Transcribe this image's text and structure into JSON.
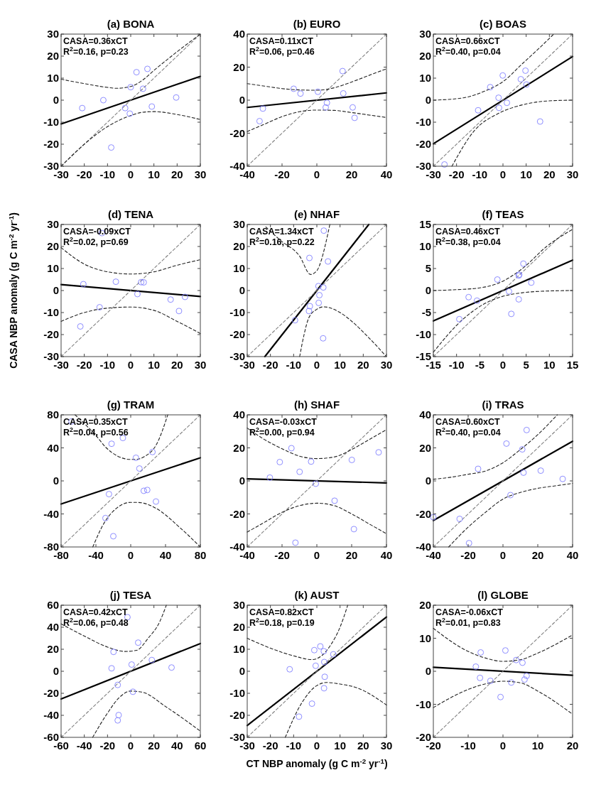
{
  "chart_data": [
    {
      "type": "scatter",
      "title": "(a) BONA",
      "xlim": [
        -30,
        30
      ],
      "ylim": [
        -30,
        30
      ],
      "xticks": [
        -30,
        -20,
        -10,
        0,
        10,
        20,
        30
      ],
      "yticks": [
        -30,
        -20,
        -10,
        0,
        10,
        20,
        30
      ],
      "annotations": [
        "CASA=0.36xCT",
        "R$^{2}$=0.16, p=0.23"
      ],
      "series": [
        {
          "type": "scatter",
          "color": "#8080ff",
          "marker": "circle",
          "x": [
            -20.9,
            -11.8,
            0,
            2.5,
            7.2,
            5.3,
            -2.4,
            -0.4,
            9.1,
            19.6,
            -8.4
          ],
          "values": [
            -3.6,
            0,
            5.9,
            12.7,
            14.2,
            5.2,
            -3.6,
            -6.1,
            -2.9,
            1.2,
            -21.5
          ]
        },
        {
          "type": "line",
          "color": "#000000",
          "line_style": "solid",
          "x": [
            -30,
            30
          ],
          "values": [
            -10.8,
            10.8
          ]
        },
        {
          "type": "line",
          "color": "#808080",
          "line_style": "dashed",
          "x": [
            -30,
            30
          ],
          "values": [
            -30,
            30
          ]
        },
        {
          "type": "line",
          "color": "#202020",
          "line_style": "dashed",
          "x": [
            -30,
            -20,
            -10,
            -6,
            0,
            5,
            10,
            20,
            30
          ],
          "values": [
            9.5,
            7.5,
            5.8,
            5.4,
            6.2,
            9,
            13.5,
            22,
            30
          ]
        },
        {
          "type": "line",
          "color": "#202020",
          "line_style": "dashed",
          "x": [
            -30,
            -20,
            -10,
            0,
            5,
            10,
            20,
            30
          ],
          "values": [
            -30,
            -20,
            -12,
            -7,
            -5.5,
            -5.2,
            -6.5,
            -8.8
          ]
        }
      ]
    },
    {
      "type": "scatter",
      "title": "(b) EURO",
      "xlim": [
        -40,
        40
      ],
      "ylim": [
        -40,
        40
      ],
      "xticks": [
        -40,
        -20,
        0,
        20,
        40
      ],
      "yticks": [
        -40,
        -20,
        0,
        20,
        40
      ],
      "annotations": [
        "CASA=0.11xCT",
        "R$^{2}$=0.06, p=0.46"
      ],
      "series": [
        {
          "type": "scatter",
          "color": "#8080ff",
          "marker": "circle",
          "x": [
            -32.9,
            -31,
            -13.3,
            -9.4,
            0.6,
            5.8,
            5.1,
            14.8,
            15.2,
            20.6,
            21.7
          ],
          "values": [
            -12.7,
            -5.1,
            6.9,
            4,
            5.1,
            -1.6,
            -4.4,
            17.6,
            4.1,
            -4.4,
            -10.7
          ]
        },
        {
          "type": "line",
          "color": "#000000",
          "line_style": "solid",
          "x": [
            -40,
            40
          ],
          "values": [
            -4.4,
            4.4
          ]
        },
        {
          "type": "line",
          "color": "#808080",
          "line_style": "dashed",
          "x": [
            -40,
            40
          ],
          "values": [
            -40,
            40
          ]
        },
        {
          "type": "line",
          "color": "#202020",
          "line_style": "dashed",
          "x": [
            -40,
            -30,
            -20,
            -10,
            0,
            10,
            20,
            30,
            40
          ],
          "values": [
            10,
            8.5,
            7,
            6.2,
            6,
            7.5,
            11,
            15,
            19
          ]
        },
        {
          "type": "line",
          "color": "#202020",
          "line_style": "dashed",
          "x": [
            -40,
            -30,
            -20,
            -10,
            0,
            10,
            20,
            30,
            40
          ],
          "values": [
            -19,
            -14.5,
            -10,
            -7,
            -6,
            -6.2,
            -7.5,
            -9,
            -10.5
          ]
        }
      ]
    },
    {
      "type": "scatter",
      "title": "(c) BOAS",
      "xlim": [
        -30,
        30
      ],
      "ylim": [
        -30,
        30
      ],
      "xticks": [
        -30,
        -20,
        -10,
        0,
        10,
        20,
        30
      ],
      "yticks": [
        -30,
        -20,
        -10,
        0,
        10,
        20,
        30
      ],
      "annotations": [
        "CASA=0.66xCT",
        "R$^{2}$=0.40, p=0.04"
      ],
      "series": [
        {
          "type": "scatter",
          "color": "#8080ff",
          "marker": "circle",
          "x": [
            -25.2,
            -10.7,
            -5.5,
            -1.9,
            -1.7,
            -0.1,
            1.7,
            7.7,
            9.7,
            10.1,
            16
          ],
          "values": [
            -29.2,
            -4.6,
            5.9,
            1.1,
            -3.5,
            11.2,
            -1.2,
            9.5,
            13.4,
            7.1,
            -9.7
          ]
        },
        {
          "type": "line",
          "color": "#000000",
          "line_style": "solid",
          "x": [
            -30,
            30
          ],
          "values": [
            -19.8,
            19.8
          ]
        },
        {
          "type": "line",
          "color": "#808080",
          "line_style": "dashed",
          "x": [
            -30,
            30
          ],
          "values": [
            -30,
            30
          ]
        },
        {
          "type": "line",
          "color": "#202020",
          "line_style": "dashed",
          "x": [
            -30,
            -17.4,
            -7,
            0,
            8.5,
            15,
            21.9
          ],
          "values": [
            0,
            1,
            4.5,
            8.4,
            16.7,
            23,
            30
          ]
        },
        {
          "type": "line",
          "color": "#202020",
          "line_style": "dashed",
          "x": [
            -22,
            -12.2,
            -1.9,
            8.5,
            18.8,
            30
          ],
          "values": [
            -30,
            -13.7,
            -6,
            -2.1,
            -0.4,
            0
          ]
        }
      ]
    },
    {
      "type": "scatter",
      "title": "(d) TENA",
      "ylabel": "CASA NBP anomaly (g C m$^{-2}$ yr$^{-1}$)",
      "xlim": [
        -30,
        30
      ],
      "ylim": [
        -30,
        30
      ],
      "xticks": [
        -30,
        -20,
        -10,
        0,
        10,
        20,
        30
      ],
      "yticks": [
        -30,
        -20,
        -10,
        0,
        10,
        20,
        30
      ],
      "annotations": [
        "CASA=-0.09xCT",
        "R$^{2}$=0.02, p=0.69"
      ],
      "series": [
        {
          "type": "scatter",
          "color": "#8080ff",
          "marker": "circle",
          "x": [
            -12.4,
            -20.4,
            -6.4,
            -13.4,
            -21.7,
            2.9,
            4.5,
            5.6,
            17.2,
            20.8,
            23.4
          ],
          "values": [
            26.1,
            2.9,
            4,
            -7.6,
            -16.3,
            -1.6,
            3.8,
            3.7,
            -4.1,
            -9.3,
            -2.9
          ]
        },
        {
          "type": "line",
          "color": "#000000",
          "line_style": "solid",
          "x": [
            -30,
            30
          ],
          "values": [
            2.7,
            -2.7
          ]
        },
        {
          "type": "line",
          "color": "#808080",
          "line_style": "dashed",
          "x": [
            -30,
            30
          ],
          "values": [
            -30,
            30
          ]
        },
        {
          "type": "line",
          "color": "#202020",
          "line_style": "dashed",
          "x": [
            -30,
            -20,
            -10,
            0,
            10,
            20,
            30
          ],
          "values": [
            19.5,
            12,
            8.5,
            7.5,
            8.5,
            11.5,
            14
          ]
        },
        {
          "type": "line",
          "color": "#202020",
          "line_style": "dashed",
          "x": [
            -30,
            -20,
            -10,
            0,
            10,
            20,
            30
          ],
          "values": [
            -14,
            -10,
            -8,
            -7.5,
            -9,
            -14,
            -19.5
          ]
        }
      ]
    },
    {
      "type": "scatter",
      "title": "(e) NHAF",
      "xlim": [
        -30,
        30
      ],
      "ylim": [
        -30,
        30
      ],
      "xticks": [
        -30,
        -20,
        -10,
        0,
        10,
        20,
        30
      ],
      "yticks": [
        -30,
        -20,
        -10,
        0,
        10,
        20,
        30
      ],
      "annotations": [
        "CASA=1.34xCT",
        "R$^{2}$=0.16, p=0.22"
      ],
      "series": [
        {
          "type": "scatter",
          "color": "#8080ff",
          "marker": "circle",
          "x": [
            3,
            -3.2,
            4.8,
            0.7,
            2.8,
            1.1,
            0.8,
            -3,
            -3.4,
            -9.4,
            2.7
          ],
          "values": [
            27.2,
            14.8,
            13.2,
            2,
            1.4,
            -2.1,
            -5.6,
            -7.1,
            -9.3,
            -13.5,
            -21.7
          ]
        },
        {
          "type": "line",
          "color": "#000000",
          "line_style": "solid",
          "x": [
            -22.39,
            22.39
          ],
          "values": [
            -30,
            30
          ]
        },
        {
          "type": "line",
          "color": "#808080",
          "line_style": "dashed",
          "x": [
            -30,
            30
          ],
          "values": [
            -30,
            30
          ]
        },
        {
          "type": "line",
          "color": "#202020",
          "line_style": "dashed",
          "x": [
            -22,
            -15.7,
            -7.4,
            -2.7,
            0,
            2,
            3.5,
            5.6
          ],
          "values": [
            28.9,
            22.8,
            15.6,
            7.3,
            9,
            14,
            20,
            30
          ]
        },
        {
          "type": "line",
          "color": "#202020",
          "line_style": "dashed",
          "x": [
            -7.4,
            -5.5,
            -3.5,
            0,
            3,
            10,
            15.4,
            22,
            30
          ],
          "values": [
            -30,
            -20,
            -12.5,
            -8.5,
            -7.4,
            -10,
            -14.3,
            -21,
            -30
          ]
        }
      ]
    },
    {
      "type": "scatter",
      "title": "(f) TEAS",
      "xlim": [
        -15,
        15
      ],
      "ylim": [
        -15,
        15
      ],
      "xticks": [
        -15,
        -10,
        -5,
        0,
        5,
        10,
        15
      ],
      "yticks": [
        -15,
        -10,
        -5,
        0,
        5,
        10,
        15
      ],
      "annotations": [
        "CASA=0.46xCT",
        "R$^{2}$=0.38, p=0.04"
      ],
      "series": [
        {
          "type": "scatter",
          "color": "#8080ff",
          "marker": "circle",
          "x": [
            -9.4,
            -7.4,
            -5.6,
            -1.2,
            1.3,
            3.4,
            3.5,
            4.4,
            6.1,
            3.4,
            1.8
          ],
          "values": [
            -6.5,
            -1.5,
            -2.3,
            2.5,
            -0.2,
            3.4,
            3.6,
            6.1,
            1.8,
            -2,
            -5.3
          ]
        },
        {
          "type": "line",
          "color": "#000000",
          "line_style": "solid",
          "x": [
            -15,
            15
          ],
          "values": [
            -6.9,
            6.9
          ]
        },
        {
          "type": "line",
          "color": "#808080",
          "line_style": "dashed",
          "x": [
            -15,
            15
          ],
          "values": [
            -15,
            15
          ]
        },
        {
          "type": "line",
          "color": "#202020",
          "line_style": "dashed",
          "x": [
            -15,
            -10,
            -5,
            -0.9,
            4.2,
            9.4,
            15
          ],
          "values": [
            0,
            0.2,
            0.6,
            1.7,
            5,
            10,
            13.9
          ]
        },
        {
          "type": "line",
          "color": "#202020",
          "line_style": "dashed",
          "x": [
            -15,
            -8.7,
            -4,
            -0.9,
            4.2,
            10,
            15
          ],
          "values": [
            -14,
            -6.6,
            -3,
            -1.6,
            -0.5,
            -0.1,
            0
          ]
        }
      ]
    },
    {
      "type": "scatter",
      "title": "(g) TRAM",
      "xlim": [
        -80,
        80
      ],
      "ylim": [
        -80,
        80
      ],
      "xticks": [
        -80,
        -40,
        0,
        40,
        80
      ],
      "yticks": [
        -80,
        -40,
        0,
        40,
        80
      ],
      "annotations": [
        "CASA=0.35xCT",
        "R$^{2}$=0.04, p=0.56"
      ],
      "series": [
        {
          "type": "scatter",
          "color": "#8080ff",
          "marker": "circle",
          "x": [
            -68,
            -22,
            -9,
            6,
            10,
            25,
            15,
            19,
            29,
            -25,
            -29,
            -20
          ],
          "values": [
            72,
            45,
            52,
            28,
            15,
            35,
            -12,
            -11,
            -25,
            -16,
            -45,
            -67
          ]
        },
        {
          "type": "line",
          "color": "#000000",
          "line_style": "solid",
          "x": [
            -80,
            80
          ],
          "values": [
            -28,
            28
          ]
        },
        {
          "type": "line",
          "color": "#808080",
          "line_style": "dashed",
          "x": [
            -80,
            80
          ],
          "values": [
            -80,
            80
          ]
        },
        {
          "type": "line",
          "color": "#202020",
          "line_style": "dashed",
          "x": [
            -64,
            -40,
            -28,
            -15,
            0,
            6,
            15,
            30,
            42.6
          ],
          "values": [
            80,
            55,
            40,
            30,
            26,
            26,
            29,
            45,
            80
          ]
        },
        {
          "type": "line",
          "color": "#202020",
          "line_style": "dashed",
          "x": [
            -43.6,
            -30,
            -15,
            0,
            6,
            15,
            28.8,
            57,
            80
          ],
          "values": [
            -80,
            -50,
            -32,
            -26,
            -26,
            -27,
            -33,
            -57,
            -80
          ]
        }
      ]
    },
    {
      "type": "scatter",
      "title": "(h) SHAF",
      "xlim": [
        -40,
        40
      ],
      "ylim": [
        -40,
        40
      ],
      "xticks": [
        -40,
        -20,
        0,
        20,
        40
      ],
      "yticks": [
        -40,
        -20,
        0,
        20,
        40
      ],
      "annotations": [
        "CASA=-0.03xCT",
        "R$^{2}$=0.00, p=0.94"
      ],
      "series": [
        {
          "type": "scatter",
          "color": "#8080ff",
          "marker": "circle",
          "x": [
            -27,
            -21.3,
            -14.6,
            -9.9,
            -3.3,
            -0.6,
            10.2,
            20.1,
            21.3,
            35.5,
            -12.3
          ],
          "values": [
            2,
            11.4,
            19.8,
            5.5,
            11.7,
            -1.7,
            -12,
            12.7,
            -29.2,
            17.3,
            -37.4
          ]
        },
        {
          "type": "line",
          "color": "#000000",
          "line_style": "solid",
          "x": [
            -40,
            40
          ],
          "values": [
            1.2,
            -1.2
          ]
        },
        {
          "type": "line",
          "color": "#808080",
          "line_style": "dashed",
          "x": [
            -40,
            40
          ],
          "values": [
            -40,
            40
          ]
        },
        {
          "type": "line",
          "color": "#202020",
          "line_style": "dashed",
          "x": [
            -40,
            -30,
            -20,
            -10,
            0,
            10,
            20,
            30,
            40
          ],
          "values": [
            32,
            25,
            19.5,
            15,
            13.5,
            14.5,
            19,
            25,
            31
          ]
        },
        {
          "type": "line",
          "color": "#202020",
          "line_style": "dashed",
          "x": [
            -40,
            -30,
            -20,
            -10,
            0,
            10,
            20,
            30,
            40
          ],
          "values": [
            -31,
            -25,
            -19,
            -15,
            -13.5,
            -15,
            -20,
            -26,
            -32
          ]
        }
      ]
    },
    {
      "type": "scatter",
      "title": "(i) TRAS",
      "xlim": [
        -40,
        40
      ],
      "ylim": [
        -40,
        40
      ],
      "xticks": [
        -40,
        -20,
        0,
        20,
        40
      ],
      "yticks": [
        -40,
        -20,
        0,
        20,
        40
      ],
      "annotations": [
        "CASA=0.60xCT",
        "R$^{2}$=0.40, p=0.04"
      ],
      "series": [
        {
          "type": "scatter",
          "color": "#8080ff",
          "marker": "circle",
          "x": [
            -40,
            -24.9,
            -19.5,
            -14.3,
            2,
            4.3,
            11.1,
            11.8,
            13.6,
            21.7,
            34.3
          ],
          "values": [
            -22,
            -23,
            -37.7,
            7.3,
            22.6,
            -8.6,
            19.1,
            5,
            30.8,
            6.2,
            1.2
          ]
        },
        {
          "type": "line",
          "color": "#000000",
          "line_style": "solid",
          "x": [
            -40,
            40
          ],
          "values": [
            -24,
            24
          ]
        },
        {
          "type": "line",
          "color": "#808080",
          "line_style": "dashed",
          "x": [
            -40,
            40
          ],
          "values": [
            -40,
            40
          ]
        },
        {
          "type": "line",
          "color": "#202020",
          "line_style": "dashed",
          "x": [
            -40,
            -30,
            -20,
            -10,
            0,
            10,
            20,
            31.2
          ],
          "values": [
            1,
            2.2,
            4,
            6,
            11,
            19,
            28,
            40
          ]
        },
        {
          "type": "line",
          "color": "#202020",
          "line_style": "dashed",
          "x": [
            -31.2,
            -20,
            -10,
            0,
            10,
            20,
            30,
            40
          ],
          "values": [
            -40,
            -28,
            -19,
            -11,
            -7,
            -4.5,
            -3,
            -1.5
          ]
        }
      ]
    },
    {
      "type": "scatter",
      "title": "(j) TESA",
      "xlim": [
        -60,
        60
      ],
      "ylim": [
        -60,
        60
      ],
      "xticks": [
        -60,
        -40,
        -20,
        0,
        20,
        40,
        60
      ],
      "yticks": [
        -60,
        -40,
        -20,
        0,
        20,
        40,
        60
      ],
      "annotations": [
        "CASA=0.42xCT",
        "R$^{2}$=0.06, p=0.48"
      ],
      "series": [
        {
          "type": "scatter",
          "color": "#8080ff",
          "marker": "circle",
          "x": [
            -2.8,
            6.4,
            -14.8,
            -16.5,
            0.8,
            18.2,
            35.2,
            -11.2,
            1.9,
            -10.4,
            -11.2
          ],
          "values": [
            49.1,
            26,
            17.6,
            2.7,
            6.1,
            10.2,
            3.4,
            -12.4,
            -18.6,
            -39.8,
            -44.6
          ]
        },
        {
          "type": "line",
          "color": "#000000",
          "line_style": "solid",
          "x": [
            -60,
            60
          ],
          "values": [
            -25.2,
            25.2
          ]
        },
        {
          "type": "line",
          "color": "#808080",
          "line_style": "dashed",
          "x": [
            -60,
            60
          ],
          "values": [
            -60,
            60
          ]
        },
        {
          "type": "line",
          "color": "#202020",
          "line_style": "dashed",
          "x": [
            -60,
            -40,
            -20,
            -5,
            5,
            15,
            25,
            30.7
          ],
          "values": [
            43,
            32,
            22,
            18,
            19,
            30,
            45,
            60
          ]
        },
        {
          "type": "line",
          "color": "#202020",
          "line_style": "dashed",
          "x": [
            -32.8,
            -20,
            -10,
            0,
            10,
            30,
            60
          ],
          "values": [
            -60,
            -38,
            -24,
            -18,
            -19,
            -32,
            -54.3
          ]
        }
      ]
    },
    {
      "type": "scatter",
      "title": "(k) AUST",
      "xlabel": "CT NBP anomaly (g C m$^{-2}$ yr$^{-1}$)",
      "xlim": [
        -30,
        30
      ],
      "ylim": [
        -30,
        30
      ],
      "xticks": [
        -30,
        -20,
        -10,
        0,
        10,
        20,
        30
      ],
      "yticks": [
        -30,
        -20,
        -10,
        0,
        10,
        20,
        30
      ],
      "annotations": [
        "CASA=0.82xCT",
        "R$^{2}$=0.18, p=0.19"
      ],
      "series": [
        {
          "type": "scatter",
          "color": "#8080ff",
          "marker": "circle",
          "x": [
            -11.7,
            -1.1,
            1.5,
            3,
            7.1,
            3.2,
            -0.5,
            3.4,
            3.1,
            -2.1,
            -7.7
          ],
          "values": [
            0.9,
            9.6,
            11.3,
            9.1,
            7.7,
            4.2,
            2.5,
            -2.5,
            -7.7,
            -14.7,
            -20.6
          ]
        },
        {
          "type": "line",
          "color": "#000000",
          "line_style": "solid",
          "x": [
            -30,
            30
          ],
          "values": [
            -24.6,
            24.6
          ]
        },
        {
          "type": "line",
          "color": "#808080",
          "line_style": "dashed",
          "x": [
            -30,
            30
          ],
          "values": [
            -30,
            30
          ]
        },
        {
          "type": "line",
          "color": "#202020",
          "line_style": "dashed",
          "x": [
            -30,
            -20,
            -10,
            -2,
            2,
            6,
            10,
            13.3
          ],
          "values": [
            15,
            10.5,
            7,
            5.3,
            7,
            12,
            20,
            30
          ]
        },
        {
          "type": "line",
          "color": "#202020",
          "line_style": "dashed",
          "x": [
            -13.6,
            -6.4,
            0,
            4.3,
            10,
            17,
            30
          ],
          "values": [
            -30,
            -14.2,
            -6.5,
            -5.1,
            -5.8,
            -7.4,
            -15.3
          ]
        }
      ]
    },
    {
      "type": "scatter",
      "title": "(l) GLOBE",
      "xlim": [
        -20,
        20
      ],
      "ylim": [
        -20,
        20
      ],
      "xticks": [
        -20,
        -10,
        0,
        10,
        20
      ],
      "yticks": [
        -20,
        -10,
        0,
        10,
        20
      ],
      "annotations": [
        "CASA=-0.06xCT",
        "R$^{2}$=0.01, p=0.83"
      ],
      "series": [
        {
          "type": "scatter",
          "color": "#8080ff",
          "marker": "circle",
          "x": [
            -7.8,
            -6.4,
            -6.6,
            -3.6,
            0.7,
            -0.7,
            2.4,
            3.8,
            5.6,
            6.2,
            6.8
          ],
          "values": [
            1.4,
            5.7,
            -2,
            -2.9,
            6.3,
            -7.8,
            -3.4,
            3.4,
            2.6,
            -2.5,
            -1.4
          ]
        },
        {
          "type": "line",
          "color": "#000000",
          "line_style": "solid",
          "x": [
            -20,
            20
          ],
          "values": [
            1.2,
            -1.2
          ]
        },
        {
          "type": "line",
          "color": "#808080",
          "line_style": "dashed",
          "x": [
            -20,
            20
          ],
          "values": [
            -20,
            20
          ]
        },
        {
          "type": "line",
          "color": "#202020",
          "line_style": "dashed",
          "x": [
            -20,
            -10,
            -5,
            0,
            5,
            10,
            20
          ],
          "values": [
            13,
            6,
            4,
            3,
            3.5,
            5.5,
            11
          ]
        },
        {
          "type": "line",
          "color": "#202020",
          "line_style": "dashed",
          "x": [
            -20,
            -10,
            -5,
            0,
            5,
            10,
            20
          ],
          "values": [
            -11,
            -5.5,
            -3.8,
            -3,
            -3.5,
            -6,
            -13
          ]
        }
      ]
    }
  ]
}
